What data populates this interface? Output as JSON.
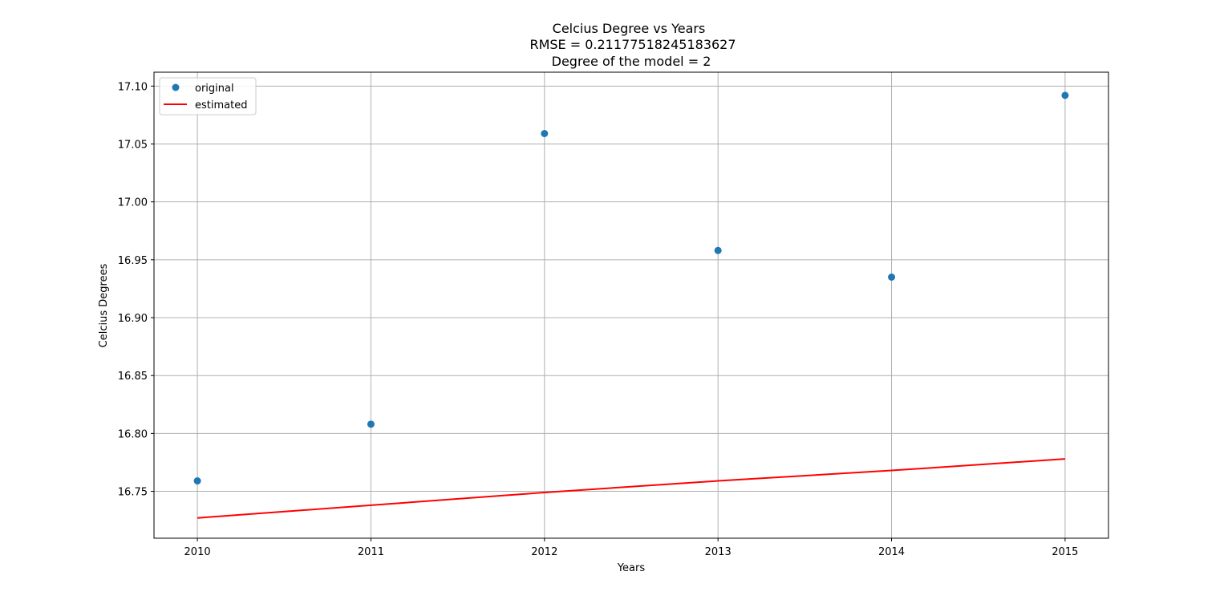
{
  "chart_data": {
    "type": "line",
    "title_lines": [
      "Celcius Degree vs Years",
      "RMSE = 0.21177518245183627",
      "Degree of the model = 2"
    ],
    "xlabel": "Years",
    "ylabel": "Celcius Degrees",
    "x_ticks": [
      "2010",
      "2011",
      "2012",
      "2013",
      "2014",
      "2015"
    ],
    "y_ticks": [
      "16.75",
      "16.80",
      "16.85",
      "16.90",
      "16.95",
      "17.00",
      "17.05",
      "17.10"
    ],
    "xlim": [
      2009.75,
      2015.25
    ],
    "ylim": [
      16.7095,
      17.112
    ],
    "grid": true,
    "legend_position": "top-left",
    "series": [
      {
        "name": "original",
        "kind": "scatter",
        "color": "#1f77b4",
        "x": [
          2010,
          2011,
          2012,
          2013,
          2014,
          2015
        ],
        "y": [
          16.759,
          16.808,
          17.059,
          16.958,
          16.935,
          17.092
        ]
      },
      {
        "name": "estimated",
        "kind": "line",
        "color": "#ff0000",
        "x": [
          2010,
          2011,
          2012,
          2013,
          2014,
          2015
        ],
        "y": [
          16.727,
          16.738,
          16.749,
          16.759,
          16.768,
          16.778
        ]
      }
    ]
  }
}
